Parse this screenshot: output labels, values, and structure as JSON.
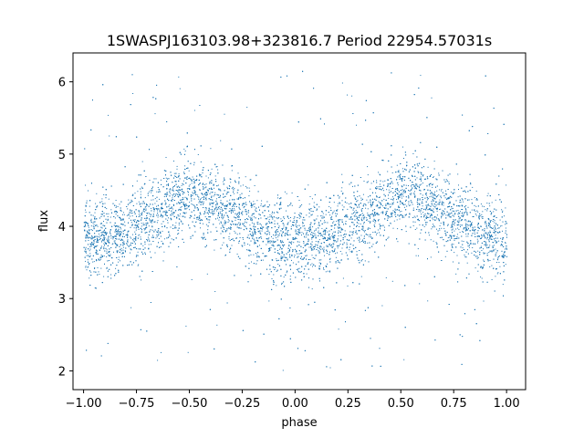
{
  "chart_data": {
    "type": "scatter",
    "title": "1SWASPJ163103.98+323816.7 Period 22954.57031s",
    "xlabel": "phase",
    "ylabel": "flux",
    "xlim": [
      -1.05,
      1.09
    ],
    "ylim": [
      1.74,
      6.4
    ],
    "xticks": [
      -1.0,
      -0.75,
      -0.5,
      -0.25,
      0.0,
      0.25,
      0.5,
      0.75,
      1.0
    ],
    "xtick_labels": [
      "−1.00",
      "−0.75",
      "−0.50",
      "−0.25",
      "0.00",
      "0.25",
      "0.50",
      "0.75",
      "1.00"
    ],
    "yticks": [
      2,
      3,
      4,
      5,
      6
    ],
    "ytick_labels": [
      "2",
      "3",
      "4",
      "5",
      "6"
    ],
    "grid": false,
    "point_color": "#1f77b4",
    "series": [
      {
        "x": [
          -1.0,
          -0.9,
          -0.8,
          -0.7,
          -0.6,
          -0.5,
          -0.4,
          -0.3,
          -0.2,
          -0.1,
          0.0,
          0.1,
          0.2,
          0.3,
          0.4,
          0.5,
          0.6,
          0.7,
          0.8,
          0.9,
          1.0
        ],
        "y_center": [
          3.82,
          3.85,
          3.95,
          4.1,
          4.3,
          4.42,
          4.35,
          4.18,
          4.0,
          3.85,
          3.78,
          3.8,
          3.95,
          4.12,
          4.3,
          4.42,
          4.35,
          4.2,
          4.02,
          3.88,
          3.82
        ],
        "y_spread": 0.45,
        "y_range": [
          2.0,
          6.2
        ]
      }
    ]
  }
}
